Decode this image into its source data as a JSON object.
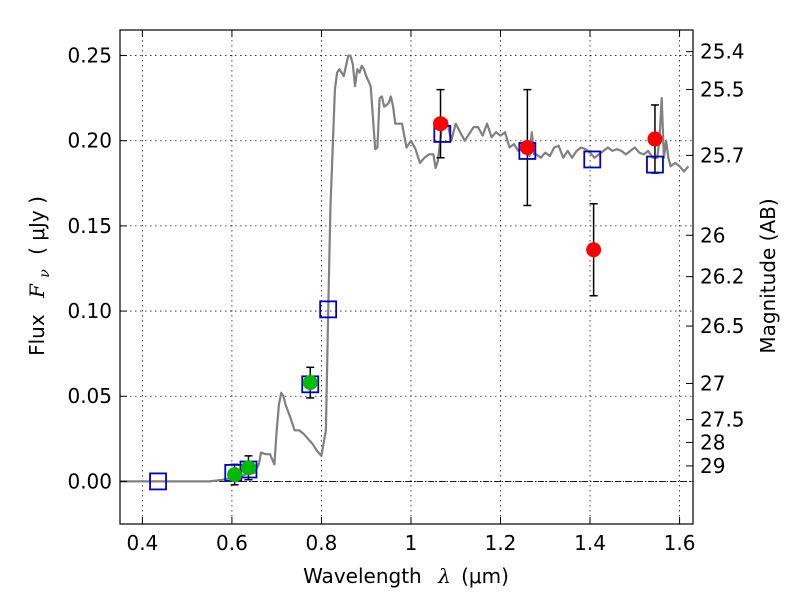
{
  "chart_data": {
    "type": "scatter",
    "xlabel": "Wavelength",
    "xlabel_symbol": "λ",
    "xlabel_unit": "(μm)",
    "ylabel": "Flux",
    "ylabel_symbol": "F",
    "ylabel_subscript": "ν",
    "ylabel_unit": "( μJy )",
    "y2label": "Magnitude (AB)",
    "xlim": [
      0.35,
      1.63
    ],
    "ylim": [
      -0.025,
      0.265
    ],
    "grid": true,
    "x_ticks": [
      {
        "value": 0.4,
        "label": "0.4"
      },
      {
        "value": 0.6,
        "label": "0.6"
      },
      {
        "value": 0.8,
        "label": "0.8"
      },
      {
        "value": 1.0,
        "label": "1"
      },
      {
        "value": 1.2,
        "label": "1.2"
      },
      {
        "value": 1.4,
        "label": "1.4"
      },
      {
        "value": 1.6,
        "label": "1.6"
      }
    ],
    "y_ticks": [
      {
        "value": 0.0,
        "label": "0.00"
      },
      {
        "value": 0.05,
        "label": "0.05"
      },
      {
        "value": 0.1,
        "label": "0.10"
      },
      {
        "value": 0.15,
        "label": "0.15"
      },
      {
        "value": 0.2,
        "label": "0.20"
      },
      {
        "value": 0.25,
        "label": "0.25"
      }
    ],
    "y2_ticks": [
      {
        "flux": 0.2523,
        "label": "25.4"
      },
      {
        "flux": 0.2301,
        "label": "25.5"
      },
      {
        "flux": 0.1914,
        "label": "25.7"
      },
      {
        "flux": 0.1445,
        "label": "26"
      },
      {
        "flux": 0.1202,
        "label": "26.2"
      },
      {
        "flux": 0.0912,
        "label": "26.5"
      },
      {
        "flux": 0.0575,
        "label": "27"
      },
      {
        "flux": 0.0363,
        "label": "27.5"
      },
      {
        "flux": 0.0229,
        "label": "28"
      },
      {
        "flux": 0.0091,
        "label": "29"
      }
    ],
    "zero_line": 0.0,
    "colors": {
      "model": "#808080",
      "model_phot": "#0000cc",
      "ground": "#00bb00",
      "hst": "#ff0000",
      "errorbar": "#000000",
      "zero_line": "#000000"
    },
    "series": [
      {
        "kind": "line",
        "style": "model",
        "x": [
          0.35,
          0.55,
          0.58,
          0.6,
          0.62,
          0.63,
          0.65,
          0.66,
          0.665,
          0.675,
          0.685,
          0.695,
          0.7,
          0.705,
          0.71,
          0.715,
          0.72,
          0.73,
          0.74,
          0.75,
          0.76,
          0.77,
          0.78,
          0.79,
          0.8,
          0.81,
          0.815,
          0.82,
          0.83,
          0.835,
          0.84,
          0.845,
          0.85,
          0.86,
          0.865,
          0.87,
          0.875,
          0.88,
          0.885,
          0.89,
          0.895,
          0.9,
          0.91,
          0.92,
          0.925,
          0.93,
          0.935,
          0.94,
          0.95,
          0.955,
          0.96,
          0.965,
          0.97,
          0.98,
          0.99,
          1.0,
          1.01,
          1.02,
          1.03,
          1.04,
          1.05,
          1.055,
          1.06,
          1.07,
          1.08,
          1.09,
          1.1,
          1.11,
          1.12,
          1.13,
          1.14,
          1.15,
          1.16,
          1.17,
          1.18,
          1.19,
          1.2,
          1.21,
          1.22,
          1.23,
          1.24,
          1.25,
          1.26,
          1.265,
          1.27,
          1.275,
          1.28,
          1.29,
          1.3,
          1.31,
          1.32,
          1.33,
          1.34,
          1.35,
          1.36,
          1.37,
          1.38,
          1.39,
          1.4,
          1.41,
          1.42,
          1.43,
          1.44,
          1.45,
          1.46,
          1.47,
          1.48,
          1.49,
          1.5,
          1.51,
          1.52,
          1.53,
          1.54,
          1.545,
          1.55,
          1.555,
          1.56,
          1.565,
          1.57,
          1.575,
          1.58,
          1.59,
          1.6,
          1.61,
          1.62
        ],
        "y": [
          0.0,
          0.0,
          0.001,
          0.002,
          0.003,
          0.004,
          0.005,
          0.01,
          0.017,
          0.016,
          0.016,
          0.01,
          0.03,
          0.045,
          0.052,
          0.05,
          0.045,
          0.038,
          0.03,
          0.03,
          0.028,
          0.025,
          0.022,
          0.018,
          0.015,
          0.03,
          0.1,
          0.16,
          0.23,
          0.24,
          0.242,
          0.24,
          0.238,
          0.25,
          0.25,
          0.245,
          0.232,
          0.242,
          0.24,
          0.244,
          0.242,
          0.238,
          0.232,
          0.195,
          0.196,
          0.225,
          0.226,
          0.22,
          0.222,
          0.226,
          0.22,
          0.21,
          0.21,
          0.21,
          0.196,
          0.2,
          0.195,
          0.187,
          0.19,
          0.192,
          0.192,
          0.184,
          0.188,
          0.21,
          0.212,
          0.2,
          0.21,
          0.205,
          0.2,
          0.204,
          0.208,
          0.208,
          0.203,
          0.21,
          0.202,
          0.205,
          0.203,
          0.205,
          0.196,
          0.198,
          0.194,
          0.197,
          0.194,
          0.191,
          0.205,
          0.192,
          0.192,
          0.19,
          0.193,
          0.191,
          0.196,
          0.197,
          0.19,
          0.194,
          0.19,
          0.194,
          0.196,
          0.195,
          0.193,
          0.19,
          0.192,
          0.194,
          0.196,
          0.194,
          0.195,
          0.194,
          0.192,
          0.194,
          0.196,
          0.193,
          0.192,
          0.194,
          0.19,
          0.19,
          0.19,
          0.2,
          0.225,
          0.19,
          0.2,
          0.19,
          0.185,
          0.187,
          0.185,
          0.182,
          0.185
        ]
      },
      {
        "kind": "scatter",
        "style": "model_phot",
        "marker": "square",
        "x": [
          0.435,
          0.603,
          0.637,
          0.775,
          0.815,
          1.07,
          1.26,
          1.405,
          1.545
        ],
        "y": [
          0.0,
          0.005,
          0.007,
          0.057,
          0.101,
          0.204,
          0.194,
          0.189,
          0.186
        ]
      },
      {
        "kind": "scatter",
        "style": "ground",
        "marker": "circle",
        "x": [
          0.606,
          0.637,
          0.775
        ],
        "y": [
          0.004,
          0.008,
          0.058
        ],
        "yerr": [
          0.006,
          0.007,
          0.009
        ]
      },
      {
        "kind": "scatter",
        "style": "hst",
        "marker": "circle",
        "x": [
          1.066,
          1.26,
          1.408,
          1.545
        ],
        "y": [
          0.21,
          0.196,
          0.136,
          0.201
        ],
        "yerr": [
          0.02,
          0.034,
          0.027,
          0.02
        ]
      }
    ]
  }
}
